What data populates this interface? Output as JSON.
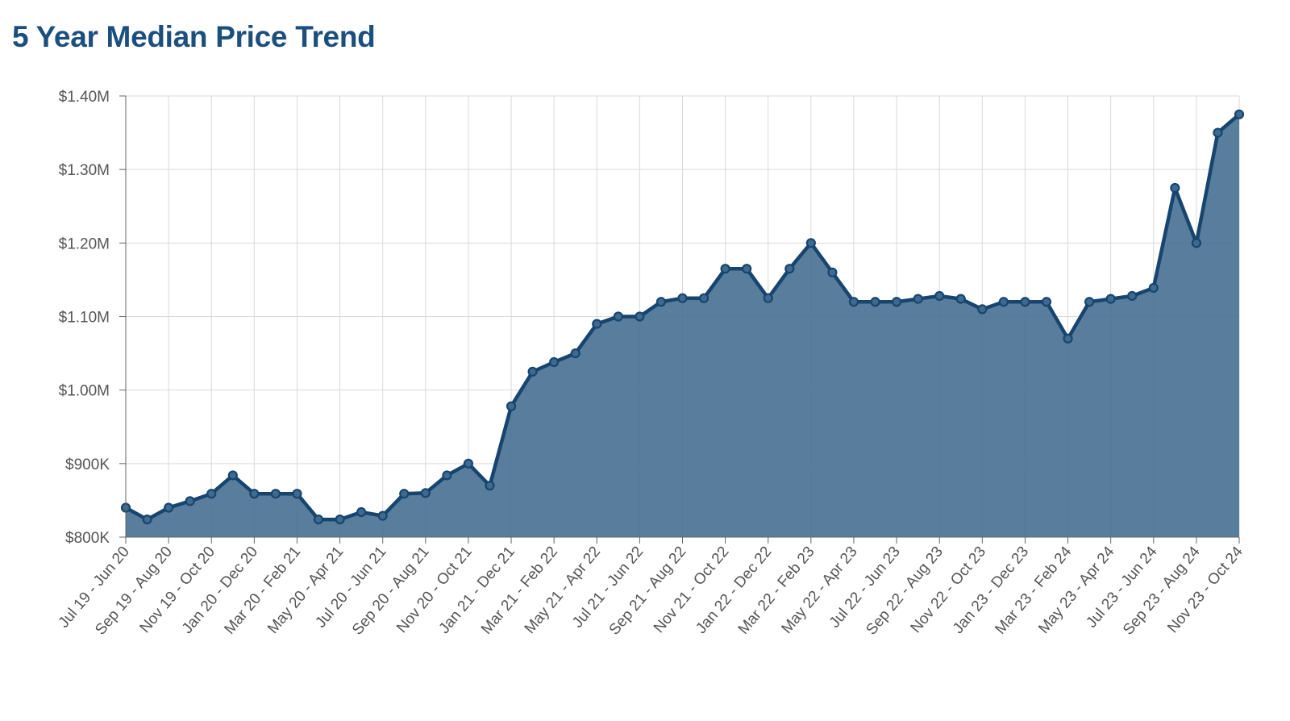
{
  "page": {
    "title": "5 Year Median Price Trend"
  },
  "colors": {
    "title": "#1b4f7e",
    "line": "#17456e",
    "area_fill": "#4b7294",
    "marker": "#3f6a8f",
    "grid": "#d9d9d9",
    "axis": "#666666",
    "tick_text": "#555555"
  },
  "chart_data": {
    "type": "area",
    "title": "5 Year Median Price Trend",
    "xlabel": "",
    "ylabel": "",
    "ylim": [
      800000,
      1400000
    ],
    "y_ticks": [
      800000,
      900000,
      1000000,
      1100000,
      1200000,
      1300000,
      1400000
    ],
    "y_tick_labels": [
      "$800K",
      "$900K",
      "$1.00M",
      "$1.10M",
      "$1.20M",
      "$1.30M",
      "$1.40M"
    ],
    "grid": true,
    "legend": "none",
    "markers": true,
    "x_tick_labels": [
      "Jul 19 - Jun 20",
      "Sep 19 - Aug 20",
      "Nov 19 - Oct 20",
      "Jan 20 - Dec 20",
      "Mar 20 - Feb 21",
      "May 20 - Apr 21",
      "Jul 20 - Jun 21",
      "Sep 20 - Aug 21",
      "Nov 20 - Oct 21",
      "Jan 21 - Dec 21",
      "Mar 21 - Feb 22",
      "May 21 - Apr 22",
      "Jul 21 - Jun 22",
      "Sep 21 - Aug 22",
      "Nov 21 - Oct 22",
      "Jan 22 - Dec 22",
      "Mar 22 - Feb 23",
      "May 22 - Apr 23",
      "Jul 22 - Jun 23",
      "Sep 22 - Aug 23",
      "Nov 22 - Oct 23",
      "Jan 23 - Dec 23",
      "Mar 23 - Feb 24",
      "May 23 - Apr 24",
      "Jul 23 - Jun 24",
      "Sep 23 - Aug 24",
      "Nov 23 - Oct 24"
    ],
    "values": [
      840000,
      824000,
      840000,
      849000,
      859000,
      884000,
      859000,
      859000,
      859000,
      824000,
      824000,
      834000,
      829000,
      859000,
      860000,
      884000,
      900000,
      870000,
      978000,
      1025000,
      1038000,
      1050000,
      1090000,
      1100000,
      1100000,
      1120000,
      1125000,
      1125000,
      1165000,
      1165000,
      1125000,
      1165000,
      1200000,
      1160000,
      1120000,
      1120000,
      1120000,
      1124000,
      1128000,
      1124000,
      1110000,
      1120000,
      1120000,
      1120000,
      1070000,
      1120000,
      1124000,
      1128000,
      1139000,
      1275000,
      1200000,
      1350000,
      1375000
    ]
  }
}
